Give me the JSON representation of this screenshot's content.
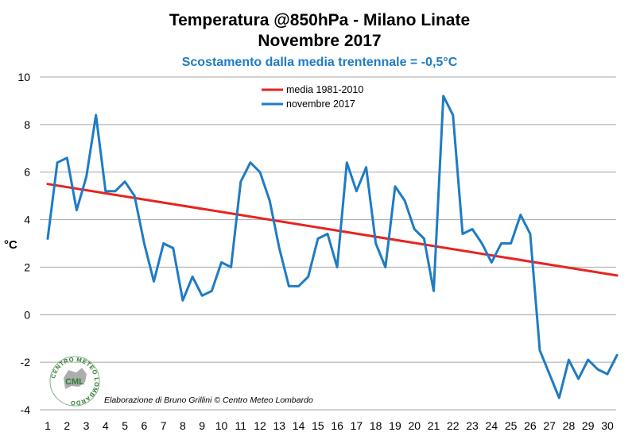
{
  "chart_data": {
    "type": "line",
    "title": "Temperatura @850hPa - Milano Linate",
    "title2": "Novembre 2017",
    "subtitle": "Scostamento dalla media trentennale = -0,5°C",
    "ylabel": "°C",
    "xlabel": "",
    "ylim": [
      -4,
      10
    ],
    "yticks": [
      -4,
      -2,
      0,
      2,
      4,
      6,
      8,
      10
    ],
    "xlim": [
      1,
      30.5
    ],
    "categories": [
      "1",
      "2",
      "3",
      "4",
      "5",
      "6",
      "7",
      "8",
      "9",
      "10",
      "11",
      "12",
      "13",
      "14",
      "15",
      "16",
      "17",
      "18",
      "19",
      "20",
      "21",
      "22",
      "23",
      "24",
      "25",
      "26",
      "27",
      "28",
      "29",
      "30"
    ],
    "grid": true,
    "legend_position": "top-center",
    "series": [
      {
        "name": "media 1981-2010",
        "color": "#e8231f",
        "x": [
          1,
          30.5
        ],
        "y": [
          5.5,
          1.65
        ]
      },
      {
        "name": "novembre 2017",
        "color": "#1f7bc4",
        "x": [
          1,
          1.5,
          2,
          2.5,
          3,
          3.5,
          4,
          4.5,
          5,
          5.5,
          6,
          6.5,
          7,
          7.5,
          8,
          8.5,
          9,
          9.5,
          10,
          10.5,
          11,
          11.5,
          12,
          12.5,
          13,
          13.5,
          14,
          14.5,
          15,
          15.5,
          16,
          16.5,
          17,
          17.5,
          18,
          18.5,
          19,
          19.5,
          20,
          20.5,
          21,
          21.5,
          22,
          22.5,
          23,
          23.5,
          24,
          24.5,
          25,
          25.5,
          26,
          26.5,
          27,
          27.5,
          28,
          28.5,
          29,
          29.5,
          30,
          30.5
        ],
        "y": [
          3.2,
          6.4,
          6.6,
          4.4,
          5.8,
          8.4,
          5.2,
          5.2,
          5.6,
          5.0,
          3.0,
          1.4,
          3.0,
          2.8,
          0.6,
          1.6,
          0.8,
          1.0,
          2.2,
          2.0,
          5.6,
          6.4,
          6.0,
          4.8,
          2.8,
          1.2,
          1.2,
          1.6,
          3.2,
          3.4,
          2.0,
          6.4,
          5.2,
          6.2,
          3.0,
          2.0,
          5.4,
          4.8,
          3.6,
          3.2,
          1.0,
          9.2,
          8.4,
          3.4,
          3.6,
          3.0,
          2.2,
          3.0,
          3.0,
          4.2,
          3.4,
          -1.5,
          -2.5,
          -3.5,
          -1.9,
          -2.7,
          -1.9,
          -2.3,
          -2.5,
          -1.7
        ]
      }
    ]
  },
  "credit": "Elaborazione di Bruno Grillini  © Centro Meteo Lombardo",
  "logo": {
    "ring_text": "CENTRO METEO LOMBARDO",
    "core_text": "CML",
    "color": "#2f7d32"
  }
}
